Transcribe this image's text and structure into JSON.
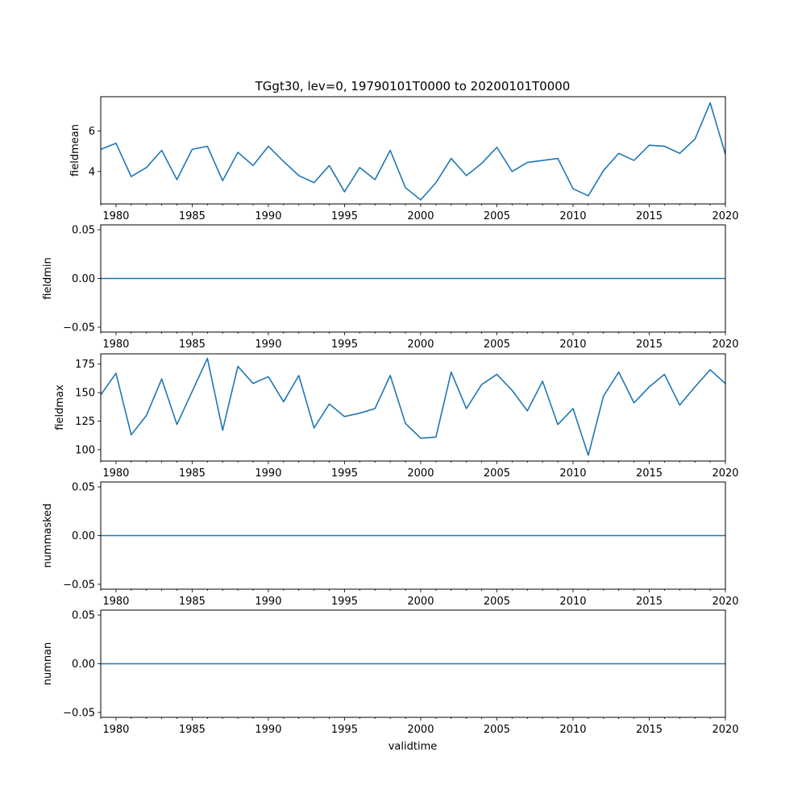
{
  "title": "TGgt30, lev=0, 19790101T0000 to 20200101T0000",
  "xlabel": "validtime",
  "line_color": "#1f77b4",
  "chart_data": [
    {
      "type": "line",
      "ylabel": "fieldmean",
      "xlim": [
        1979,
        2020
      ],
      "ylim": [
        2.4,
        7.7
      ],
      "yticks": [
        4,
        6
      ],
      "ytick_labels": [
        "4",
        "6"
      ],
      "x": [
        1979,
        1980,
        1981,
        1982,
        1983,
        1984,
        1985,
        1986,
        1987,
        1988,
        1989,
        1990,
        1991,
        1992,
        1993,
        1994,
        1995,
        1996,
        1997,
        1998,
        1999,
        2000,
        2001,
        2002,
        2003,
        2004,
        2005,
        2006,
        2007,
        2008,
        2009,
        2010,
        2011,
        2012,
        2013,
        2014,
        2015,
        2016,
        2017,
        2018,
        2019,
        2020
      ],
      "y": [
        5.1,
        5.4,
        3.75,
        4.2,
        5.05,
        3.6,
        5.1,
        5.25,
        3.55,
        4.95,
        4.3,
        5.25,
        4.5,
        3.8,
        3.45,
        4.3,
        3.0,
        4.2,
        3.6,
        5.05,
        3.2,
        2.6,
        3.45,
        4.65,
        3.8,
        4.4,
        5.2,
        4.0,
        4.45,
        4.55,
        4.65,
        3.15,
        2.8,
        4.05,
        4.9,
        4.55,
        5.3,
        5.25,
        4.9,
        5.6,
        7.4,
        4.85
      ]
    },
    {
      "type": "line",
      "ylabel": "fieldmin",
      "xlim": [
        1979,
        2020
      ],
      "ylim": [
        -0.055,
        0.055
      ],
      "yticks": [
        -0.05,
        0,
        0.05
      ],
      "ytick_labels": [
        "−0.05",
        "0.00",
        "0.05"
      ],
      "x": [
        1979,
        2020
      ],
      "y": [
        0,
        0
      ]
    },
    {
      "type": "line",
      "ylabel": "fieldmax",
      "xlim": [
        1979,
        2020
      ],
      "ylim": [
        90,
        184
      ],
      "yticks": [
        100,
        125,
        150,
        175
      ],
      "ytick_labels": [
        "100",
        "125",
        "150",
        "175"
      ],
      "x": [
        1979,
        1980,
        1981,
        1982,
        1983,
        1984,
        1985,
        1986,
        1987,
        1988,
        1989,
        1990,
        1991,
        1992,
        1993,
        1994,
        1995,
        1996,
        1997,
        1998,
        1999,
        2000,
        2001,
        2002,
        2003,
        2004,
        2005,
        2006,
        2007,
        2008,
        2009,
        2010,
        2011,
        2012,
        2013,
        2014,
        2015,
        2016,
        2017,
        2018,
        2019,
        2020
      ],
      "y": [
        148,
        167,
        113,
        130,
        162,
        122,
        151,
        180,
        117,
        173,
        158,
        164,
        142,
        165,
        119,
        140,
        129,
        132,
        136,
        165,
        123,
        110,
        111,
        168,
        136,
        157,
        166,
        152,
        134,
        160,
        122,
        136,
        95,
        147,
        168,
        141,
        155,
        166,
        139,
        155,
        170,
        158
      ]
    },
    {
      "type": "line",
      "ylabel": "nummasked",
      "xlim": [
        1979,
        2020
      ],
      "ylim": [
        -0.055,
        0.055
      ],
      "yticks": [
        -0.05,
        0,
        0.05
      ],
      "ytick_labels": [
        "−0.05",
        "0.00",
        "0.05"
      ],
      "x": [
        1979,
        2020
      ],
      "y": [
        0,
        0
      ]
    },
    {
      "type": "line",
      "ylabel": "numnan",
      "xlim": [
        1979,
        2020
      ],
      "ylim": [
        -0.055,
        0.055
      ],
      "yticks": [
        -0.05,
        0,
        0.05
      ],
      "ytick_labels": [
        "−0.05",
        "0.00",
        "0.05"
      ],
      "x": [
        1979,
        2020
      ],
      "y": [
        0,
        0
      ]
    }
  ],
  "xticks": [
    1980,
    1985,
    1990,
    1995,
    2000,
    2005,
    2010,
    2015,
    2020
  ],
  "xtick_labels": [
    "1980",
    "1985",
    "1990",
    "1995",
    "2000",
    "2005",
    "2010",
    "2015",
    "2020"
  ]
}
